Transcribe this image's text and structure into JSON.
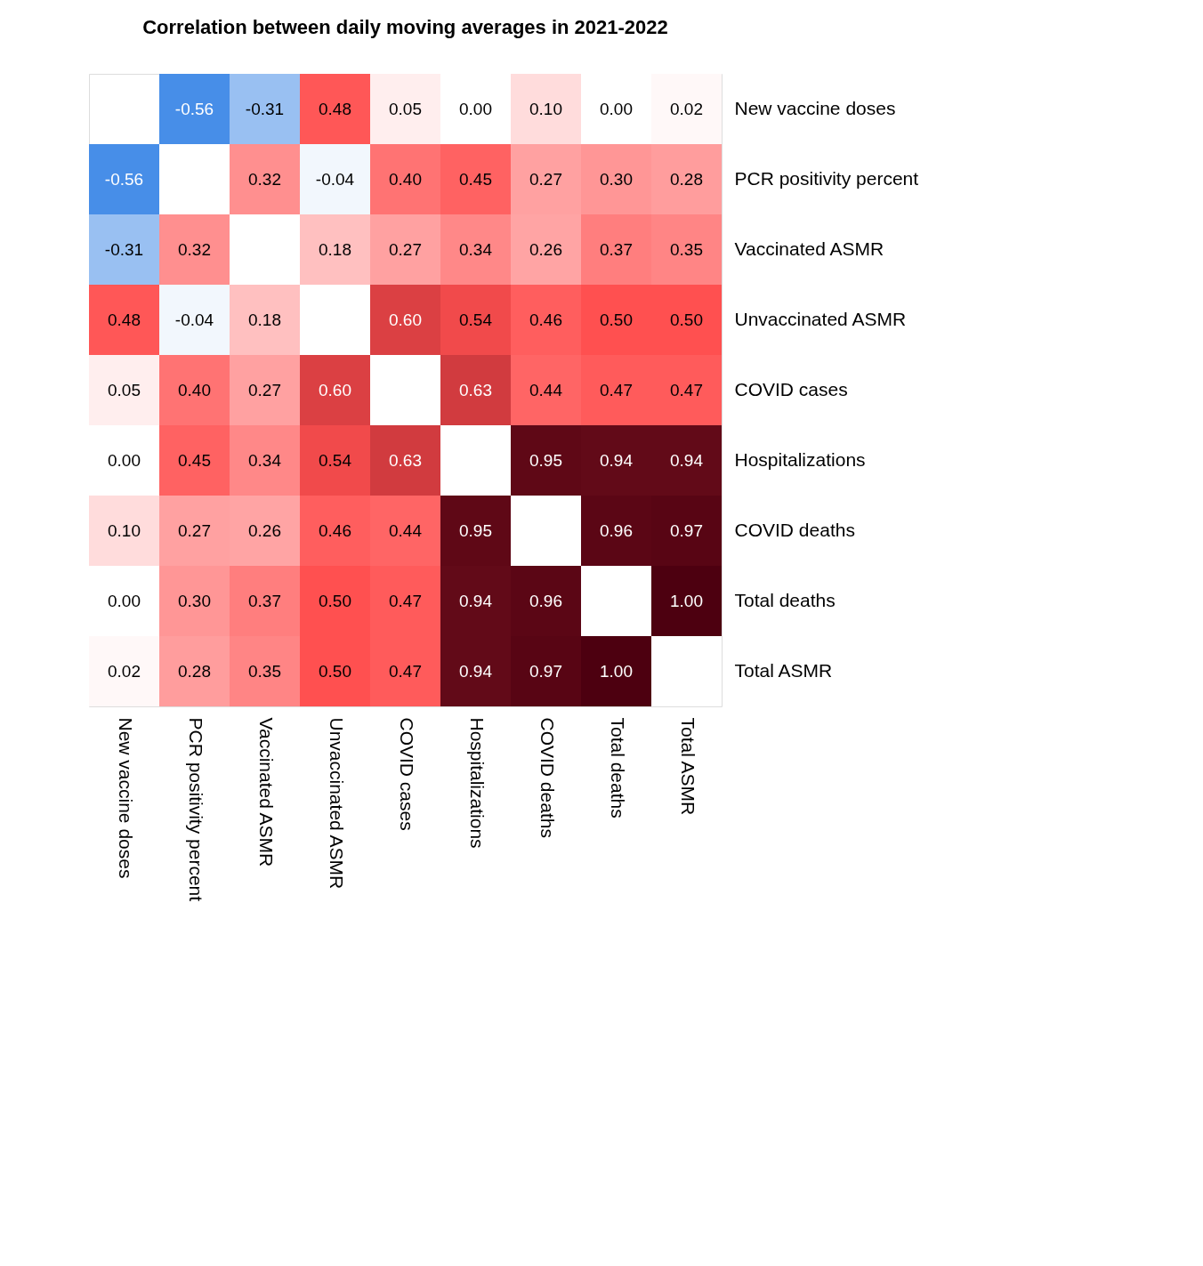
{
  "chart_data": {
    "type": "heatmap",
    "title": "Correlation between daily moving averages in 2021-2022",
    "data_labels": true,
    "categories": [
      "New vaccine doses",
      "PCR positivity percent",
      "Vaccinated ASMR",
      "Unvaccinated ASMR",
      "COVID cases",
      "Hospitalizations",
      "COVID deaths",
      "Total deaths",
      "Total ASMR"
    ],
    "y_categories": [
      "New vaccine doses",
      "PCR positivity percent",
      "Vaccinated ASMR",
      "Unvaccinated ASMR",
      "COVID cases",
      "Hospitalizations",
      "COVID deaths",
      "Total deaths",
      "Total ASMR"
    ],
    "cells": [
      [
        null,
        -0.56,
        -0.31,
        0.48,
        0.05,
        0.0,
        0.1,
        0.0,
        0.02
      ],
      [
        -0.56,
        null,
        0.32,
        -0.04,
        0.4,
        0.45,
        0.27,
        0.3,
        0.28
      ],
      [
        -0.31,
        0.32,
        null,
        0.18,
        0.27,
        0.34,
        0.26,
        0.37,
        0.35
      ],
      [
        0.48,
        -0.04,
        0.18,
        null,
        0.6,
        0.54,
        0.46,
        0.5,
        0.5
      ],
      [
        0.05,
        0.4,
        0.27,
        0.6,
        null,
        0.63,
        0.44,
        0.47,
        0.47
      ],
      [
        0.0,
        0.45,
        0.34,
        0.54,
        0.63,
        null,
        0.95,
        0.94,
        0.94
      ],
      [
        0.1,
        0.27,
        0.26,
        0.46,
        0.44,
        0.95,
        null,
        0.96,
        0.97
      ],
      [
        0.0,
        0.3,
        0.37,
        0.5,
        0.47,
        0.94,
        0.96,
        null,
        1.0
      ],
      [
        0.02,
        0.28,
        0.35,
        0.5,
        0.47,
        0.94,
        0.97,
        1.0,
        null
      ]
    ],
    "cell_labels": [
      [
        null,
        "-0.56",
        "-0.31",
        "0.48",
        "0.05",
        "0.00",
        "0.10",
        "0.00",
        "0.02"
      ],
      [
        "-0.56",
        null,
        "0.32",
        "-0.04",
        "0.40",
        "0.45",
        "0.27",
        "0.30",
        "0.28"
      ],
      [
        "-0.31",
        "0.32",
        null,
        "0.18",
        "0.27",
        "0.34",
        "0.26",
        "0.37",
        "0.35"
      ],
      [
        "0.48",
        "-0.04",
        "0.18",
        null,
        "0.60",
        "0.54",
        "0.46",
        "0.50",
        "0.50"
      ],
      [
        "0.05",
        "0.40",
        "0.27",
        "0.60",
        null,
        "0.63",
        "0.44",
        "0.47",
        "0.47"
      ],
      [
        "0.00",
        "0.45",
        "0.34",
        "0.54",
        "0.63",
        null,
        "0.95",
        "0.94",
        "0.94"
      ],
      [
        "0.10",
        "0.27",
        "0.26",
        "0.46",
        "0.44",
        "0.95",
        null,
        "0.96",
        "0.97"
      ],
      [
        "0.00",
        "0.30",
        "0.37",
        "0.50",
        "0.47",
        "0.94",
        "0.96",
        null,
        "1.00"
      ],
      [
        "0.02",
        "0.28",
        "0.35",
        "0.50",
        "0.47",
        "0.94",
        "0.97",
        "1.00",
        null
      ]
    ]
  }
}
